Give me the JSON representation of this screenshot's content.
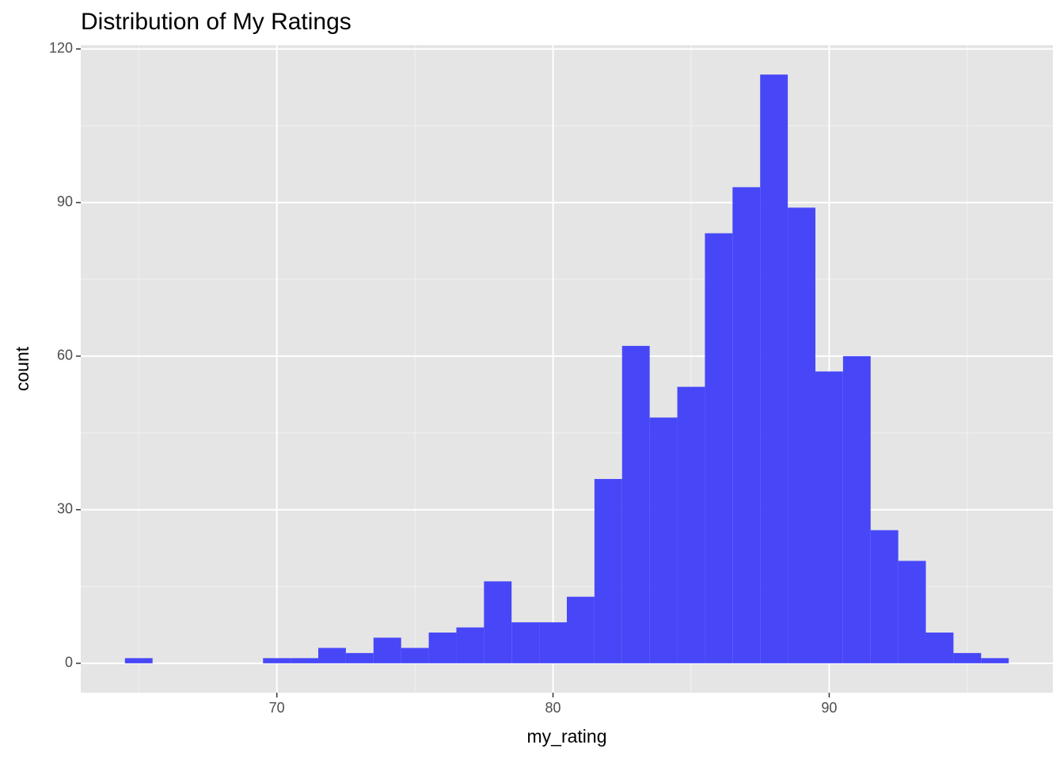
{
  "chart_data": {
    "type": "histogram",
    "title": "Distribution of My Ratings",
    "x_label": "my_rating",
    "y_label": "count",
    "bins": [
      64.5,
      65.5,
      66.5,
      67.5,
      68.5,
      69.5,
      70.5,
      71.5,
      72.5,
      73.5,
      74.5,
      75.5,
      76.5,
      77.5,
      78.5,
      79.5,
      80.5,
      81.5,
      82.5,
      83.5,
      84.5,
      85.5,
      86.5,
      87.5,
      88.5,
      89.5,
      90.5,
      91.5,
      92.5,
      93.5,
      94.5,
      95.5,
      96.5
    ],
    "values": [
      1,
      0,
      0,
      0,
      0,
      1,
      1,
      3,
      2,
      5,
      3,
      6,
      7,
      16,
      8,
      8,
      13,
      36,
      62,
      48,
      54,
      84,
      93,
      115,
      89,
      57,
      60,
      26,
      20,
      6,
      2,
      1
    ],
    "color": "#4747f8",
    "xlim": [
      62.9,
      98.1
    ],
    "ylim": [
      -5.75,
      120.75
    ],
    "xticks": [
      70,
      80,
      90
    ],
    "yticks": [
      0,
      30,
      60,
      90,
      120
    ],
    "xticks_minor": [
      65,
      75,
      85,
      95
    ],
    "yticks_minor": [
      15,
      45,
      75,
      105
    ],
    "grid": true
  }
}
